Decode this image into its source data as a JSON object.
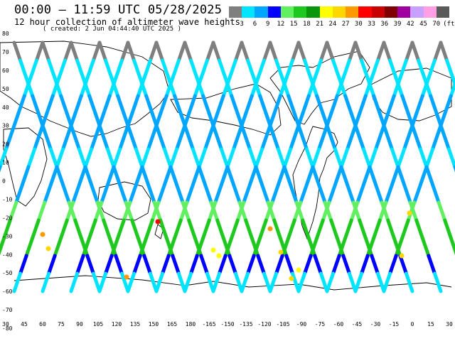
{
  "header": {
    "title": "00:00 – 11:59 UTC 05/28/2025",
    "subtitle": "12 hour collection of altimeter wave heights",
    "created": "( created:  2 Jun 04:44:40 UTC 2025 )"
  },
  "legend": {
    "labels": [
      "3",
      "6",
      "9",
      "12",
      "15",
      "18",
      "21",
      "24",
      "27",
      "30",
      "33",
      "36",
      "39",
      "42",
      "45",
      "70",
      "(ft)"
    ],
    "colors": [
      "#7f7f7f",
      "#00e5ff",
      "#00a6ff",
      "#0000ff",
      "#60f060",
      "#1ec81e",
      "#0a960a",
      "#ffff00",
      "#ffd700",
      "#ff9900",
      "#ff0000",
      "#c80000",
      "#800000",
      "#a000a0",
      "#c8a0ff",
      "#ffa0e6",
      "#5a5a5a"
    ]
  },
  "axes": {
    "y_labels": [
      "80",
      "70",
      "60",
      "50",
      "40",
      "30",
      "20",
      "10",
      "0",
      "-10",
      "-20",
      "-30",
      "-40",
      "-50",
      "-60",
      "-70",
      "-80"
    ],
    "x_labels": [
      "30",
      "45",
      "60",
      "75",
      "90",
      "105",
      "120",
      "135",
      "150",
      "165",
      "180",
      "-165",
      "-150",
      "-135",
      "-120",
      "-105",
      "-90",
      "-75",
      "-60",
      "-45",
      "-30",
      "-15",
      "0",
      "15",
      "30"
    ]
  }
}
